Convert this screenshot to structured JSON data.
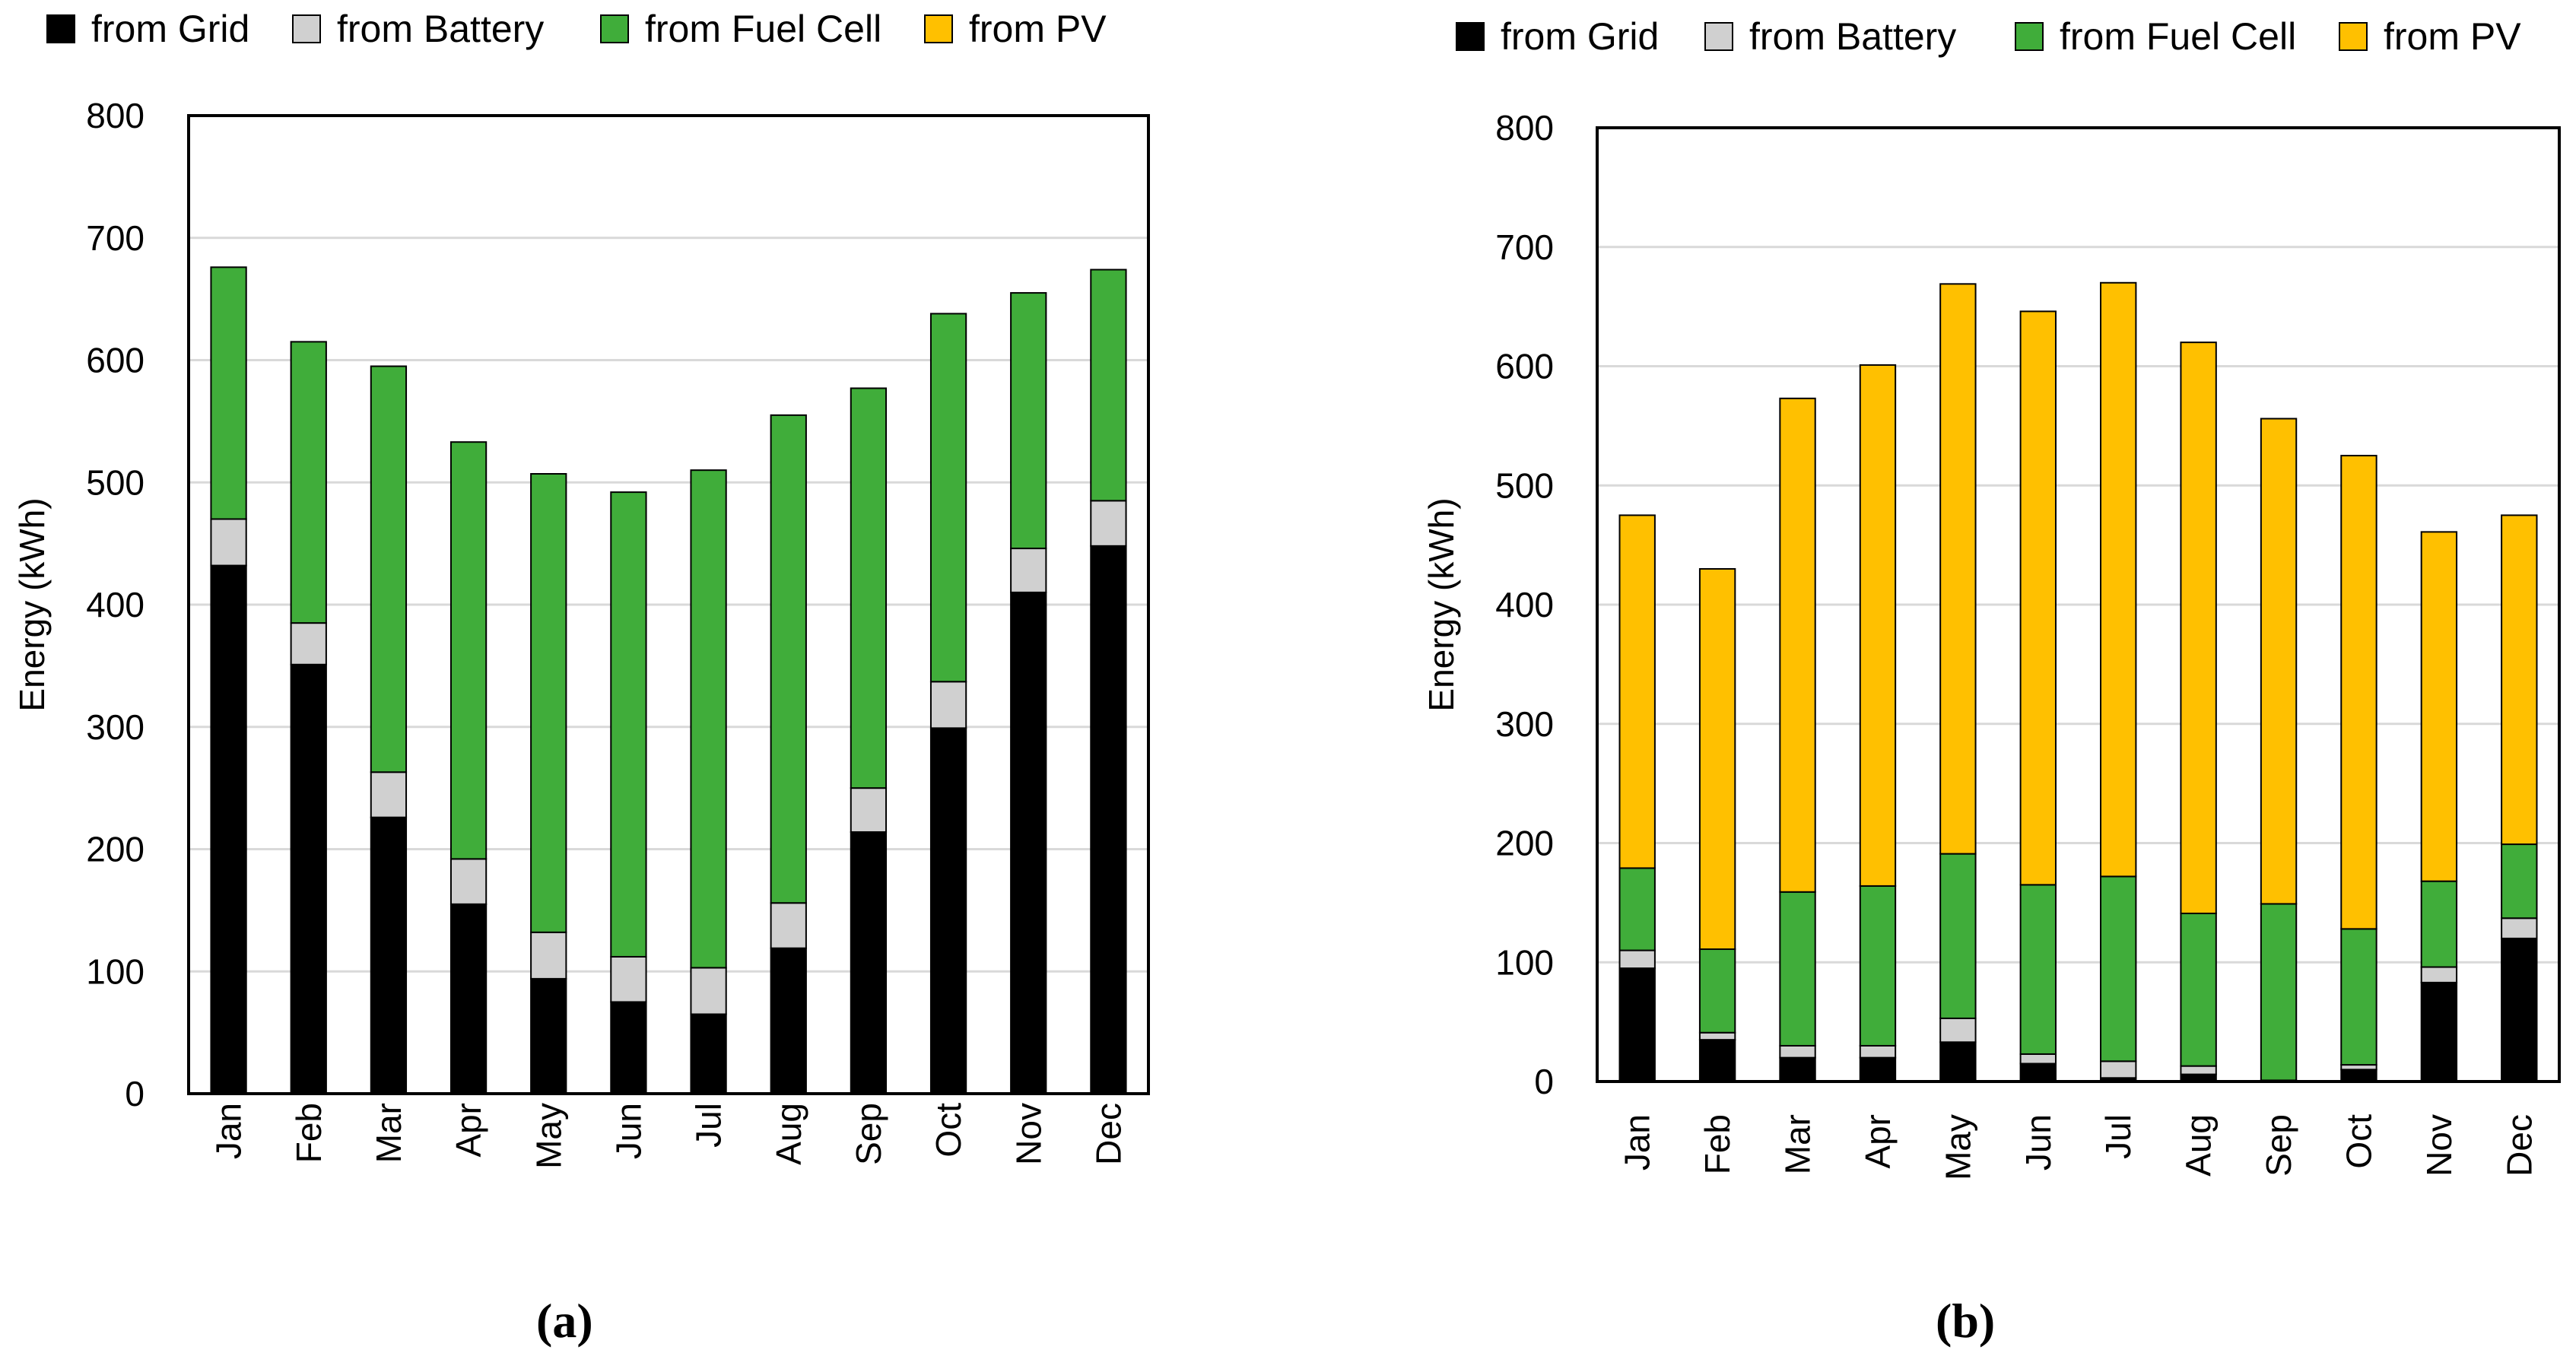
{
  "figure": {
    "label_a": "(a)",
    "label_b": "(b)"
  },
  "chart_data": [
    {
      "type": "bar",
      "stacked": true,
      "panel": "a",
      "title": "",
      "xlabel": "",
      "ylabel": "Energy (kWh)",
      "ylim": [
        0,
        800
      ],
      "yticks": [
        0,
        100,
        200,
        300,
        400,
        500,
        600,
        700,
        800
      ],
      "grid": true,
      "legend_position": "top",
      "categories": [
        "Jan",
        "Feb",
        "Mar",
        "Apr",
        "May",
        "Jun",
        "Jul",
        "Aug",
        "Sep",
        "Oct",
        "Nov",
        "Dec"
      ],
      "series": [
        {
          "name": "from Grid",
          "color": "#000000",
          "values": [
            432,
            351,
            226,
            155,
            94,
            75,
            65,
            119,
            214,
            299,
            410,
            448
          ]
        },
        {
          "name": "from Battery",
          "color": "#d0d0d0",
          "values": [
            38,
            34,
            37,
            37,
            38,
            37,
            38,
            37,
            36,
            38,
            36,
            37
          ]
        },
        {
          "name": "from Fuel Cell",
          "color": "#40ad3a",
          "values": [
            206,
            230,
            332,
            341,
            375,
            380,
            407,
            399,
            327,
            301,
            209,
            189
          ]
        },
        {
          "name": "from PV",
          "color": "#ffc000",
          "values": [
            0,
            0,
            0,
            0,
            0,
            0,
            0,
            0,
            0,
            0,
            0,
            0
          ]
        }
      ]
    },
    {
      "type": "bar",
      "stacked": true,
      "panel": "b",
      "title": "",
      "xlabel": "",
      "ylabel": "Energy (kWh)",
      "ylim": [
        0,
        800
      ],
      "yticks": [
        0,
        100,
        200,
        300,
        400,
        500,
        600,
        700,
        800
      ],
      "grid": true,
      "legend_position": "top",
      "categories": [
        "Jan",
        "Feb",
        "Mar",
        "Apr",
        "May",
        "Jun",
        "Jul",
        "Aug",
        "Sep",
        "Oct",
        "Nov",
        "Dec"
      ],
      "series": [
        {
          "name": "from Grid",
          "color": "#000000",
          "values": [
            95,
            35,
            20,
            20,
            33,
            15,
            3,
            6,
            1,
            10,
            83,
            120
          ]
        },
        {
          "name": "from Battery",
          "color": "#d0d0d0",
          "values": [
            15,
            6,
            10,
            10,
            20,
            8,
            14,
            7,
            0,
            4,
            13,
            17
          ]
        },
        {
          "name": "from Fuel Cell",
          "color": "#40ad3a",
          "values": [
            69,
            70,
            129,
            134,
            138,
            142,
            155,
            128,
            148,
            114,
            72,
            62
          ]
        },
        {
          "name": "from PV",
          "color": "#ffc000",
          "values": [
            296,
            319,
            414,
            437,
            478,
            481,
            498,
            479,
            407,
            397,
            293,
            276
          ]
        }
      ]
    }
  ]
}
